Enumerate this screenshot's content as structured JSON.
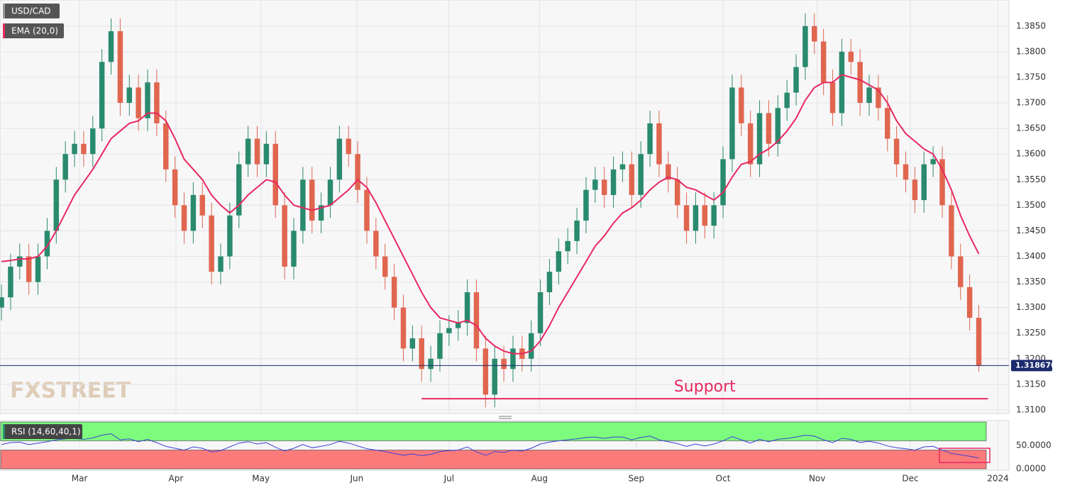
{
  "chart_data": [
    {
      "type": "candlestick",
      "name": "USD/CAD",
      "up_color": "#2a8a6d",
      "down_color": "#e0664f",
      "open": [
        1.33,
        1.332,
        1.338,
        1.34,
        1.335,
        1.34,
        1.345,
        1.355,
        1.36,
        1.362,
        1.36,
        1.365,
        1.378,
        1.384,
        1.37,
        1.373,
        1.367,
        1.374,
        1.366,
        1.357,
        1.35,
        1.345,
        1.352,
        1.348,
        1.337,
        1.34,
        1.348,
        1.358,
        1.363,
        1.358,
        1.362,
        1.35,
        1.338,
        1.345,
        1.355,
        1.347,
        1.35,
        1.355,
        1.363,
        1.36,
        1.353,
        1.345,
        1.34,
        1.336,
        1.33,
        1.322,
        1.324,
        1.318,
        1.32,
        1.325,
        1.326,
        1.327,
        1.333,
        1.322,
        1.313,
        1.32,
        1.318,
        1.322,
        1.32,
        1.325,
        1.333,
        1.337,
        1.341,
        1.343,
        1.347,
        1.353,
        1.355,
        1.352,
        1.357,
        1.358,
        1.352,
        1.36,
        1.366,
        1.358,
        1.355,
        1.35,
        1.345,
        1.35,
        1.346,
        1.35,
        1.359,
        1.373,
        1.366,
        1.358,
        1.368,
        1.362,
        1.369,
        1.372,
        1.377,
        1.385,
        1.382,
        1.374,
        1.368,
        1.38,
        1.378,
        1.37,
        1.373,
        1.369,
        1.363,
        1.358,
        1.355,
        1.351,
        1.358,
        1.359,
        1.35,
        1.34,
        1.334,
        1.328
      ],
      "high": [
        1.3345,
        1.3405,
        1.3425,
        1.3425,
        1.3425,
        1.3475,
        1.3575,
        1.3625,
        1.3645,
        1.3645,
        1.3675,
        1.3805,
        1.3865,
        1.3865,
        1.3755,
        1.3755,
        1.3765,
        1.3765,
        1.3685,
        1.3595,
        1.3525,
        1.3545,
        1.3545,
        1.3505,
        1.3425,
        1.3505,
        1.3605,
        1.3655,
        1.3655,
        1.3645,
        1.3645,
        1.3525,
        1.3475,
        1.3575,
        1.3575,
        1.3525,
        1.3575,
        1.3655,
        1.3655,
        1.3625,
        1.3555,
        1.3475,
        1.3425,
        1.3385,
        1.3325,
        1.3265,
        1.3265,
        1.3225,
        1.3275,
        1.3285,
        1.3295,
        1.3355,
        1.3355,
        1.3245,
        1.3225,
        1.3225,
        1.3245,
        1.3245,
        1.3275,
        1.3355,
        1.3395,
        1.3435,
        1.3455,
        1.3495,
        1.3555,
        1.3575,
        1.3575,
        1.3595,
        1.3605,
        1.3605,
        1.3625,
        1.3685,
        1.3685,
        1.3605,
        1.3575,
        1.3525,
        1.3525,
        1.3525,
        1.3525,
        1.3615,
        1.3755,
        1.3755,
        1.3685,
        1.3705,
        1.3705,
        1.3715,
        1.3745,
        1.3795,
        1.3875,
        1.3875,
        1.3845,
        1.3765,
        1.3825,
        1.3825,
        1.3805,
        1.3755,
        1.3755,
        1.3715,
        1.3655,
        1.3605,
        1.3575,
        1.3605,
        1.3615,
        1.3615,
        1.3525,
        1.3425,
        1.3365,
        1.3305
      ],
      "low": [
        1.3275,
        1.3295,
        1.3355,
        1.3325,
        1.3325,
        1.3375,
        1.3425,
        1.3525,
        1.3575,
        1.3575,
        1.3575,
        1.3625,
        1.3755,
        1.3675,
        1.3675,
        1.3645,
        1.3645,
        1.3635,
        1.3545,
        1.3475,
        1.3425,
        1.3425,
        1.3455,
        1.3345,
        1.3345,
        1.3375,
        1.3455,
        1.3555,
        1.3555,
        1.3555,
        1.3475,
        1.3355,
        1.3355,
        1.3425,
        1.3445,
        1.3445,
        1.3475,
        1.3525,
        1.3575,
        1.3505,
        1.3425,
        1.3375,
        1.3335,
        1.3275,
        1.3195,
        1.3195,
        1.3155,
        1.3155,
        1.3175,
        1.3225,
        1.3235,
        1.3245,
        1.3195,
        1.3105,
        1.3105,
        1.3155,
        1.3155,
        1.3175,
        1.3175,
        1.3225,
        1.3305,
        1.3345,
        1.3385,
        1.3405,
        1.3445,
        1.3505,
        1.3495,
        1.3495,
        1.3545,
        1.3495,
        1.3495,
        1.3575,
        1.3555,
        1.3525,
        1.3475,
        1.3425,
        1.3425,
        1.3435,
        1.3435,
        1.3475,
        1.3565,
        1.3635,
        1.3555,
        1.3555,
        1.3595,
        1.3595,
        1.3665,
        1.3695,
        1.3745,
        1.3795,
        1.3715,
        1.3655,
        1.3655,
        1.3755,
        1.3675,
        1.3675,
        1.3665,
        1.3605,
        1.3555,
        1.3525,
        1.3485,
        1.3485,
        1.3555,
        1.3475,
        1.3375,
        1.3315,
        1.3255,
        1.3175
      ],
      "close": [
        1.332,
        1.338,
        1.34,
        1.335,
        1.34,
        1.345,
        1.355,
        1.36,
        1.362,
        1.36,
        1.365,
        1.378,
        1.384,
        1.37,
        1.373,
        1.367,
        1.374,
        1.366,
        1.357,
        1.35,
        1.345,
        1.352,
        1.348,
        1.337,
        1.34,
        1.348,
        1.358,
        1.363,
        1.358,
        1.362,
        1.35,
        1.338,
        1.345,
        1.355,
        1.347,
        1.35,
        1.355,
        1.363,
        1.36,
        1.353,
        1.345,
        1.34,
        1.336,
        1.33,
        1.322,
        1.324,
        1.318,
        1.32,
        1.325,
        1.326,
        1.327,
        1.333,
        1.322,
        1.313,
        1.32,
        1.318,
        1.322,
        1.32,
        1.325,
        1.333,
        1.337,
        1.341,
        1.343,
        1.347,
        1.353,
        1.355,
        1.352,
        1.357,
        1.358,
        1.352,
        1.36,
        1.366,
        1.358,
        1.355,
        1.35,
        1.345,
        1.35,
        1.346,
        1.35,
        1.359,
        1.373,
        1.366,
        1.358,
        1.368,
        1.362,
        1.369,
        1.372,
        1.377,
        1.385,
        1.382,
        1.374,
        1.368,
        1.38,
        1.378,
        1.37,
        1.373,
        1.369,
        1.363,
        1.358,
        1.355,
        1.351,
        1.358,
        1.359,
        1.35,
        1.34,
        1.334,
        1.328,
        1.3187
      ],
      "series": [
        {
          "name": "EMA (20,0)",
          "type": "line",
          "color": "#e8285f",
          "values": [
            1.339,
            1.3392,
            1.3395,
            1.3395,
            1.34,
            1.342,
            1.345,
            1.3485,
            1.352,
            1.3545,
            1.357,
            1.36,
            1.363,
            1.3645,
            1.366,
            1.3665,
            1.368,
            1.368,
            1.3665,
            1.363,
            1.359,
            1.357,
            1.355,
            1.352,
            1.35,
            1.3485,
            1.35,
            1.352,
            1.3535,
            1.355,
            1.3545,
            1.352,
            1.35,
            1.3495,
            1.349,
            1.3495,
            1.35,
            1.3515,
            1.353,
            1.355,
            1.3535,
            1.3505,
            1.347,
            1.3435,
            1.34,
            1.3365,
            1.333,
            1.33,
            1.328,
            1.3275,
            1.327,
            1.3275,
            1.3265,
            1.324,
            1.3225,
            1.3215,
            1.321,
            1.321,
            1.3215,
            1.3235,
            1.3265,
            1.33,
            1.333,
            1.336,
            1.339,
            1.342,
            1.344,
            1.3465,
            1.3485,
            1.3495,
            1.351,
            1.353,
            1.3545,
            1.3555,
            1.355,
            1.3535,
            1.353,
            1.352,
            1.351,
            1.3525,
            1.3555,
            1.358,
            1.3585,
            1.36,
            1.361,
            1.3625,
            1.3645,
            1.367,
            1.3705,
            1.373,
            1.374,
            1.374,
            1.3755,
            1.375,
            1.3745,
            1.3735,
            1.3725,
            1.37,
            1.3665,
            1.364,
            1.3625,
            1.361,
            1.36,
            1.357,
            1.353,
            1.348,
            1.344,
            1.3405
          ]
        }
      ],
      "xlim": [
        -0.16,
        110.3
      ],
      "ylim": [
        1.3093,
        1.3901
      ],
      "yticks": [
        {
          "value": 1.31,
          "label": "1.3100"
        },
        {
          "value": 1.315,
          "label": "1.3150"
        },
        {
          "value": 1.32,
          "label": "1.3200"
        },
        {
          "value": 1.325,
          "label": "1.3250"
        },
        {
          "value": 1.33,
          "label": "1.3300"
        },
        {
          "value": 1.335,
          "label": "1.3350"
        },
        {
          "value": 1.34,
          "label": "1.3400"
        },
        {
          "value": 1.345,
          "label": "1.3450"
        },
        {
          "value": 1.35,
          "label": "1.3500"
        },
        {
          "value": 1.355,
          "label": "1.3550"
        },
        {
          "value": 1.36,
          "label": "1.3600"
        },
        {
          "value": 1.365,
          "label": "1.3650"
        },
        {
          "value": 1.37,
          "label": "1.3700"
        },
        {
          "value": 1.375,
          "label": "1.3750"
        },
        {
          "value": 1.38,
          "label": "1.3800"
        },
        {
          "value": 1.385,
          "label": "1.3850"
        }
      ],
      "xticks": [
        {
          "value": 8.55,
          "label": "Mar"
        },
        {
          "value": 19.1,
          "label": "Apr"
        },
        {
          "value": 28.4,
          "label": "May"
        },
        {
          "value": 38.9,
          "label": "Jun"
        },
        {
          "value": 49.0,
          "label": "Jul"
        },
        {
          "value": 58.9,
          "label": "Aug"
        },
        {
          "value": 69.5,
          "label": "Sep"
        },
        {
          "value": 79.0,
          "label": "Oct"
        },
        {
          "value": 89.3,
          "label": "Nov"
        },
        {
          "value": 99.5,
          "label": "Dec"
        },
        {
          "value": 109.1,
          "label": "2024"
        }
      ],
      "grid": true,
      "last_price": {
        "value": 1.31867,
        "label": "1.318670",
        "color": "#1b2a6b"
      },
      "support": {
        "value": 1.3122,
        "label": "Support",
        "xrange": [
          46,
          108
        ],
        "color": "#e8285f"
      },
      "watermark": "FXSTREET"
    },
    {
      "type": "line",
      "series": [
        {
          "name": "RSI (14,60,40,1)",
          "color": "#3a3fd6",
          "values": [
            52,
            56,
            57,
            52,
            55,
            58,
            62,
            64,
            65,
            63,
            66,
            72,
            75,
            62,
            64,
            58,
            63,
            56,
            48,
            44,
            40,
            47,
            44,
            36,
            39,
            47,
            55,
            58,
            53,
            56,
            46,
            38,
            44,
            52,
            45,
            48,
            52,
            59,
            55,
            49,
            43,
            40,
            37,
            33,
            29,
            32,
            28,
            31,
            37,
            39,
            40,
            47,
            36,
            29,
            37,
            35,
            40,
            38,
            44,
            53,
            57,
            60,
            62,
            64,
            67,
            68,
            65,
            68,
            68,
            62,
            67,
            70,
            62,
            58,
            54,
            48,
            53,
            49,
            53,
            60,
            69,
            62,
            55,
            63,
            58,
            63,
            65,
            68,
            72,
            70,
            62,
            56,
            65,
            63,
            56,
            59,
            55,
            49,
            45,
            43,
            40,
            47,
            48,
            40,
            33,
            30,
            27,
            23
          ]
        }
      ],
      "ylim": [
        0,
        100
      ],
      "yticks": [
        {
          "value": 50,
          "label": "50.0000"
        },
        {
          "value": 0,
          "label": "0.0000"
        }
      ],
      "zones": [
        {
          "from": 60,
          "to": 100,
          "color": "#7dfb7d"
        },
        {
          "from": 0,
          "to": 40,
          "color": "#fb7b7b"
        }
      ]
    }
  ]
}
